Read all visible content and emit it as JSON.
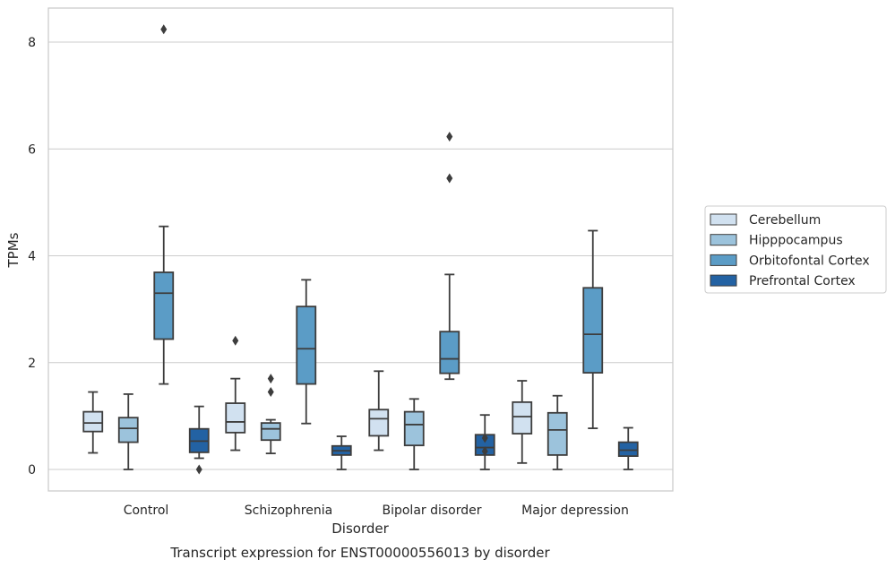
{
  "chart_data": {
    "type": "box",
    "title": "",
    "caption": "Transcript expression for ENST00000556013 by disorder",
    "xlabel": "Disorder",
    "ylabel": "TPMs",
    "ylim": [
      -0.4,
      8.65
    ],
    "yticks": [
      0,
      2,
      4,
      6,
      8
    ],
    "grid": "horizontal",
    "legend_position": "right",
    "categories": [
      "Control",
      "Schizophrenia",
      "Bipolar disorder",
      "Major depression"
    ],
    "series": [
      {
        "name": "Cerebellum",
        "color": "#d1e1f0",
        "boxes": [
          {
            "whisker_low": 0.31,
            "q1": 0.71,
            "median": 0.87,
            "q3": 1.08,
            "whisker_high": 1.45,
            "outliers": []
          },
          {
            "whisker_low": 0.36,
            "q1": 0.69,
            "median": 0.89,
            "q3": 1.24,
            "whisker_high": 1.7,
            "outliers": [
              2.41
            ]
          },
          {
            "whisker_low": 0.36,
            "q1": 0.63,
            "median": 0.95,
            "q3": 1.12,
            "whisker_high": 1.84,
            "outliers": []
          },
          {
            "whisker_low": 0.12,
            "q1": 0.67,
            "median": 0.99,
            "q3": 1.26,
            "whisker_high": 1.66,
            "outliers": []
          }
        ]
      },
      {
        "name": "Hipppocampus",
        "color": "#9cc3dc",
        "boxes": [
          {
            "whisker_low": 0.0,
            "q1": 0.51,
            "median": 0.77,
            "q3": 0.97,
            "whisker_high": 1.41,
            "outliers": []
          },
          {
            "whisker_low": 0.3,
            "q1": 0.55,
            "median": 0.76,
            "q3": 0.87,
            "whisker_high": 0.93,
            "outliers": [
              1.45,
              1.7
            ]
          },
          {
            "whisker_low": 0.0,
            "q1": 0.45,
            "median": 0.84,
            "q3": 1.08,
            "whisker_high": 1.32,
            "outliers": []
          },
          {
            "whisker_low": 0.0,
            "q1": 0.27,
            "median": 0.74,
            "q3": 1.06,
            "whisker_high": 1.38,
            "outliers": []
          }
        ]
      },
      {
        "name": "Orbitofontal Cortex",
        "color": "#5b9cc6",
        "boxes": [
          {
            "whisker_low": 1.6,
            "q1": 2.44,
            "median": 3.3,
            "q3": 3.69,
            "whisker_high": 4.55,
            "outliers": [
              8.24
            ]
          },
          {
            "whisker_low": 0.86,
            "q1": 1.6,
            "median": 2.26,
            "q3": 3.05,
            "whisker_high": 3.55,
            "outliers": []
          },
          {
            "whisker_low": 1.69,
            "q1": 1.8,
            "median": 2.07,
            "q3": 2.58,
            "whisker_high": 3.65,
            "outliers": [
              5.45,
              6.23
            ]
          },
          {
            "whisker_low": 0.77,
            "q1": 1.81,
            "median": 2.53,
            "q3": 3.4,
            "whisker_high": 4.47,
            "outliers": []
          }
        ]
      },
      {
        "name": "Prefrontal Cortex",
        "color": "#2362a3",
        "boxes": [
          {
            "whisker_low": 0.21,
            "q1": 0.32,
            "median": 0.53,
            "q3": 0.76,
            "whisker_high": 1.18,
            "outliers": [
              0.0
            ]
          },
          {
            "whisker_low": 0.0,
            "q1": 0.27,
            "median": 0.35,
            "q3": 0.44,
            "whisker_high": 0.62,
            "outliers": []
          },
          {
            "whisker_low": 0.0,
            "q1": 0.27,
            "median": 0.41,
            "q3": 0.65,
            "whisker_high": 1.02,
            "outliers": [
              0.34,
              0.59
            ]
          },
          {
            "whisker_low": 0.0,
            "q1": 0.25,
            "median": 0.36,
            "q3": 0.51,
            "whisker_high": 0.78,
            "outliers": []
          }
        ]
      }
    ]
  }
}
